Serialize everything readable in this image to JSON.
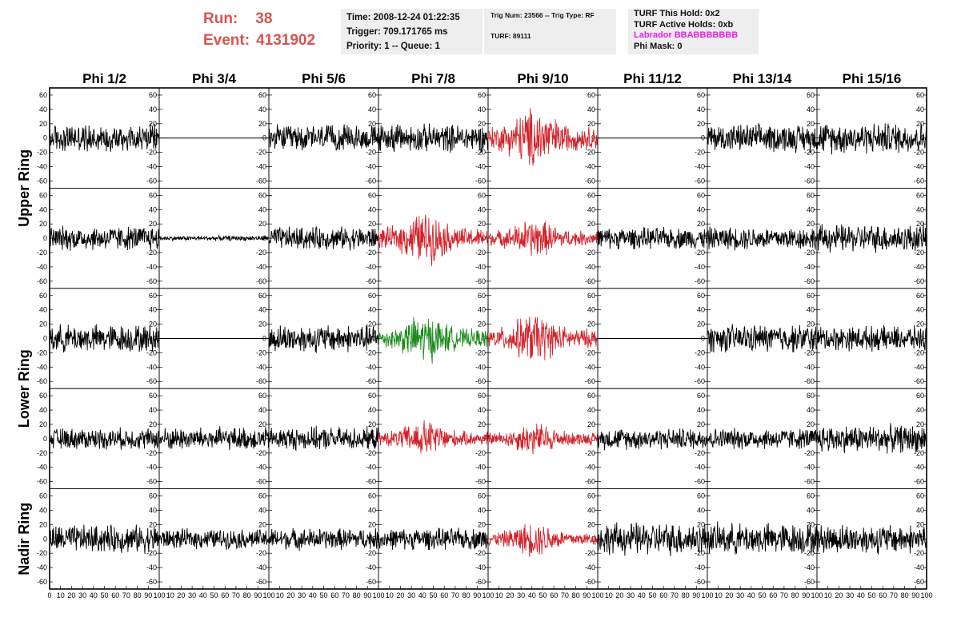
{
  "header": {
    "run_label": "Run:",
    "run_value": "38",
    "event_label": "Event:",
    "event_value": "4131902",
    "time": "Time: 2008-12-24 01:22:35",
    "trigger": "Trigger: 709.171765 ms",
    "priority": "Priority: 1 -- Queue: 1",
    "trig_num": "Trig Num: 23566 -- Trig Type: RF",
    "turf_num": "TURF: 89111",
    "turf_this_hold": "TURF This Hold: 0x2",
    "turf_active_holds": "TURF Active Holds: 0xb",
    "labrador": "Labrador BBABBBBBBB",
    "phi_mask": "Phi Mask: 0"
  },
  "colors": {
    "title_red": "#d9534f",
    "trace_black": "#000000",
    "trace_red": "#d1232a",
    "trace_green": "#1a8a1a",
    "magenta": "#e91ee9",
    "box_bg": "#eeeeee"
  },
  "chart_data": {
    "type": "line",
    "columns": [
      "Phi 1/2",
      "Phi 3/4",
      "Phi 5/6",
      "Phi 7/8",
      "Phi 9/10",
      "Phi 11/12",
      "Phi 13/14",
      "Phi 15/16"
    ],
    "ring_labels": [
      {
        "label": "Upper Ring",
        "rows": [
          0,
          1
        ]
      },
      {
        "label": "Lower Ring",
        "rows": [
          2,
          3
        ]
      },
      {
        "label": "Nadir Ring",
        "rows": [
          4
        ]
      }
    ],
    "ylim": [
      -70,
      70
    ],
    "yticks": [
      -60,
      -40,
      -20,
      0,
      20,
      40,
      60
    ],
    "xlim": [
      0,
      100
    ],
    "xticks": [
      0,
      10,
      20,
      30,
      40,
      50,
      60,
      70,
      80,
      90,
      100
    ],
    "x_tick_labels": [
      "0",
      "10",
      "20",
      "30",
      "40",
      "50",
      "60",
      "70",
      "80",
      "90",
      "100"
    ],
    "samples_per_trace": 260,
    "panels": [
      [
        {
          "style": "black",
          "amplitude": 17,
          "envelope": "flat"
        },
        {
          "style": "flatline",
          "amplitude": 0,
          "envelope": "flat"
        },
        {
          "style": "black",
          "amplitude": 16,
          "envelope": "flat"
        },
        {
          "style": "black",
          "amplitude": 17,
          "envelope": "flat"
        },
        {
          "style": "red",
          "amplitude": 32,
          "envelope": "peak"
        },
        {
          "style": "flatline",
          "amplitude": 0,
          "envelope": "flat"
        },
        {
          "style": "black",
          "amplitude": 17,
          "envelope": "flat"
        },
        {
          "style": "black",
          "amplitude": 19,
          "envelope": "flat"
        }
      ],
      [
        {
          "style": "black",
          "amplitude": 15,
          "envelope": "flat"
        },
        {
          "style": "black",
          "amplitude": 3,
          "envelope": "flat"
        },
        {
          "style": "black",
          "amplitude": 14,
          "envelope": "flat"
        },
        {
          "style": "red",
          "amplitude": 27,
          "envelope": "peak"
        },
        {
          "style": "red",
          "amplitude": 20,
          "envelope": "peak"
        },
        {
          "style": "black",
          "amplitude": 13,
          "envelope": "flat"
        },
        {
          "style": "black",
          "amplitude": 14,
          "envelope": "flat"
        },
        {
          "style": "black",
          "amplitude": 17,
          "envelope": "flat"
        }
      ],
      [
        {
          "style": "black",
          "amplitude": 17,
          "envelope": "flat"
        },
        {
          "style": "flatline",
          "amplitude": 0,
          "envelope": "flat"
        },
        {
          "style": "black",
          "amplitude": 17,
          "envelope": "flat"
        },
        {
          "style": "green",
          "amplitude": 25,
          "envelope": "peak"
        },
        {
          "style": "red",
          "amplitude": 26,
          "envelope": "peak"
        },
        {
          "style": "flatline",
          "amplitude": 0,
          "envelope": "flat"
        },
        {
          "style": "black",
          "amplitude": 17,
          "envelope": "flat"
        },
        {
          "style": "black",
          "amplitude": 15,
          "envelope": "flat"
        }
      ],
      [
        {
          "style": "black",
          "amplitude": 13,
          "envelope": "flat"
        },
        {
          "style": "black",
          "amplitude": 14,
          "envelope": "flat"
        },
        {
          "style": "black",
          "amplitude": 14,
          "envelope": "flat"
        },
        {
          "style": "red",
          "amplitude": 19,
          "envelope": "peak"
        },
        {
          "style": "red",
          "amplitude": 17,
          "envelope": "peak"
        },
        {
          "style": "black",
          "amplitude": 13,
          "envelope": "flat"
        },
        {
          "style": "black",
          "amplitude": 13,
          "envelope": "flat"
        },
        {
          "style": "black",
          "amplitude": 17,
          "envelope": "flat"
        }
      ],
      [
        {
          "style": "black",
          "amplitude": 17,
          "envelope": "flat"
        },
        {
          "style": "black",
          "amplitude": 12,
          "envelope": "flat"
        },
        {
          "style": "black",
          "amplitude": 13,
          "envelope": "flat"
        },
        {
          "style": "black",
          "amplitude": 13,
          "envelope": "flat"
        },
        {
          "style": "red",
          "amplitude": 18,
          "envelope": "peak"
        },
        {
          "style": "black",
          "amplitude": 20,
          "envelope": "flat"
        },
        {
          "style": "black",
          "amplitude": 19,
          "envelope": "flat"
        },
        {
          "style": "black",
          "amplitude": 18,
          "envelope": "flat"
        }
      ]
    ]
  }
}
